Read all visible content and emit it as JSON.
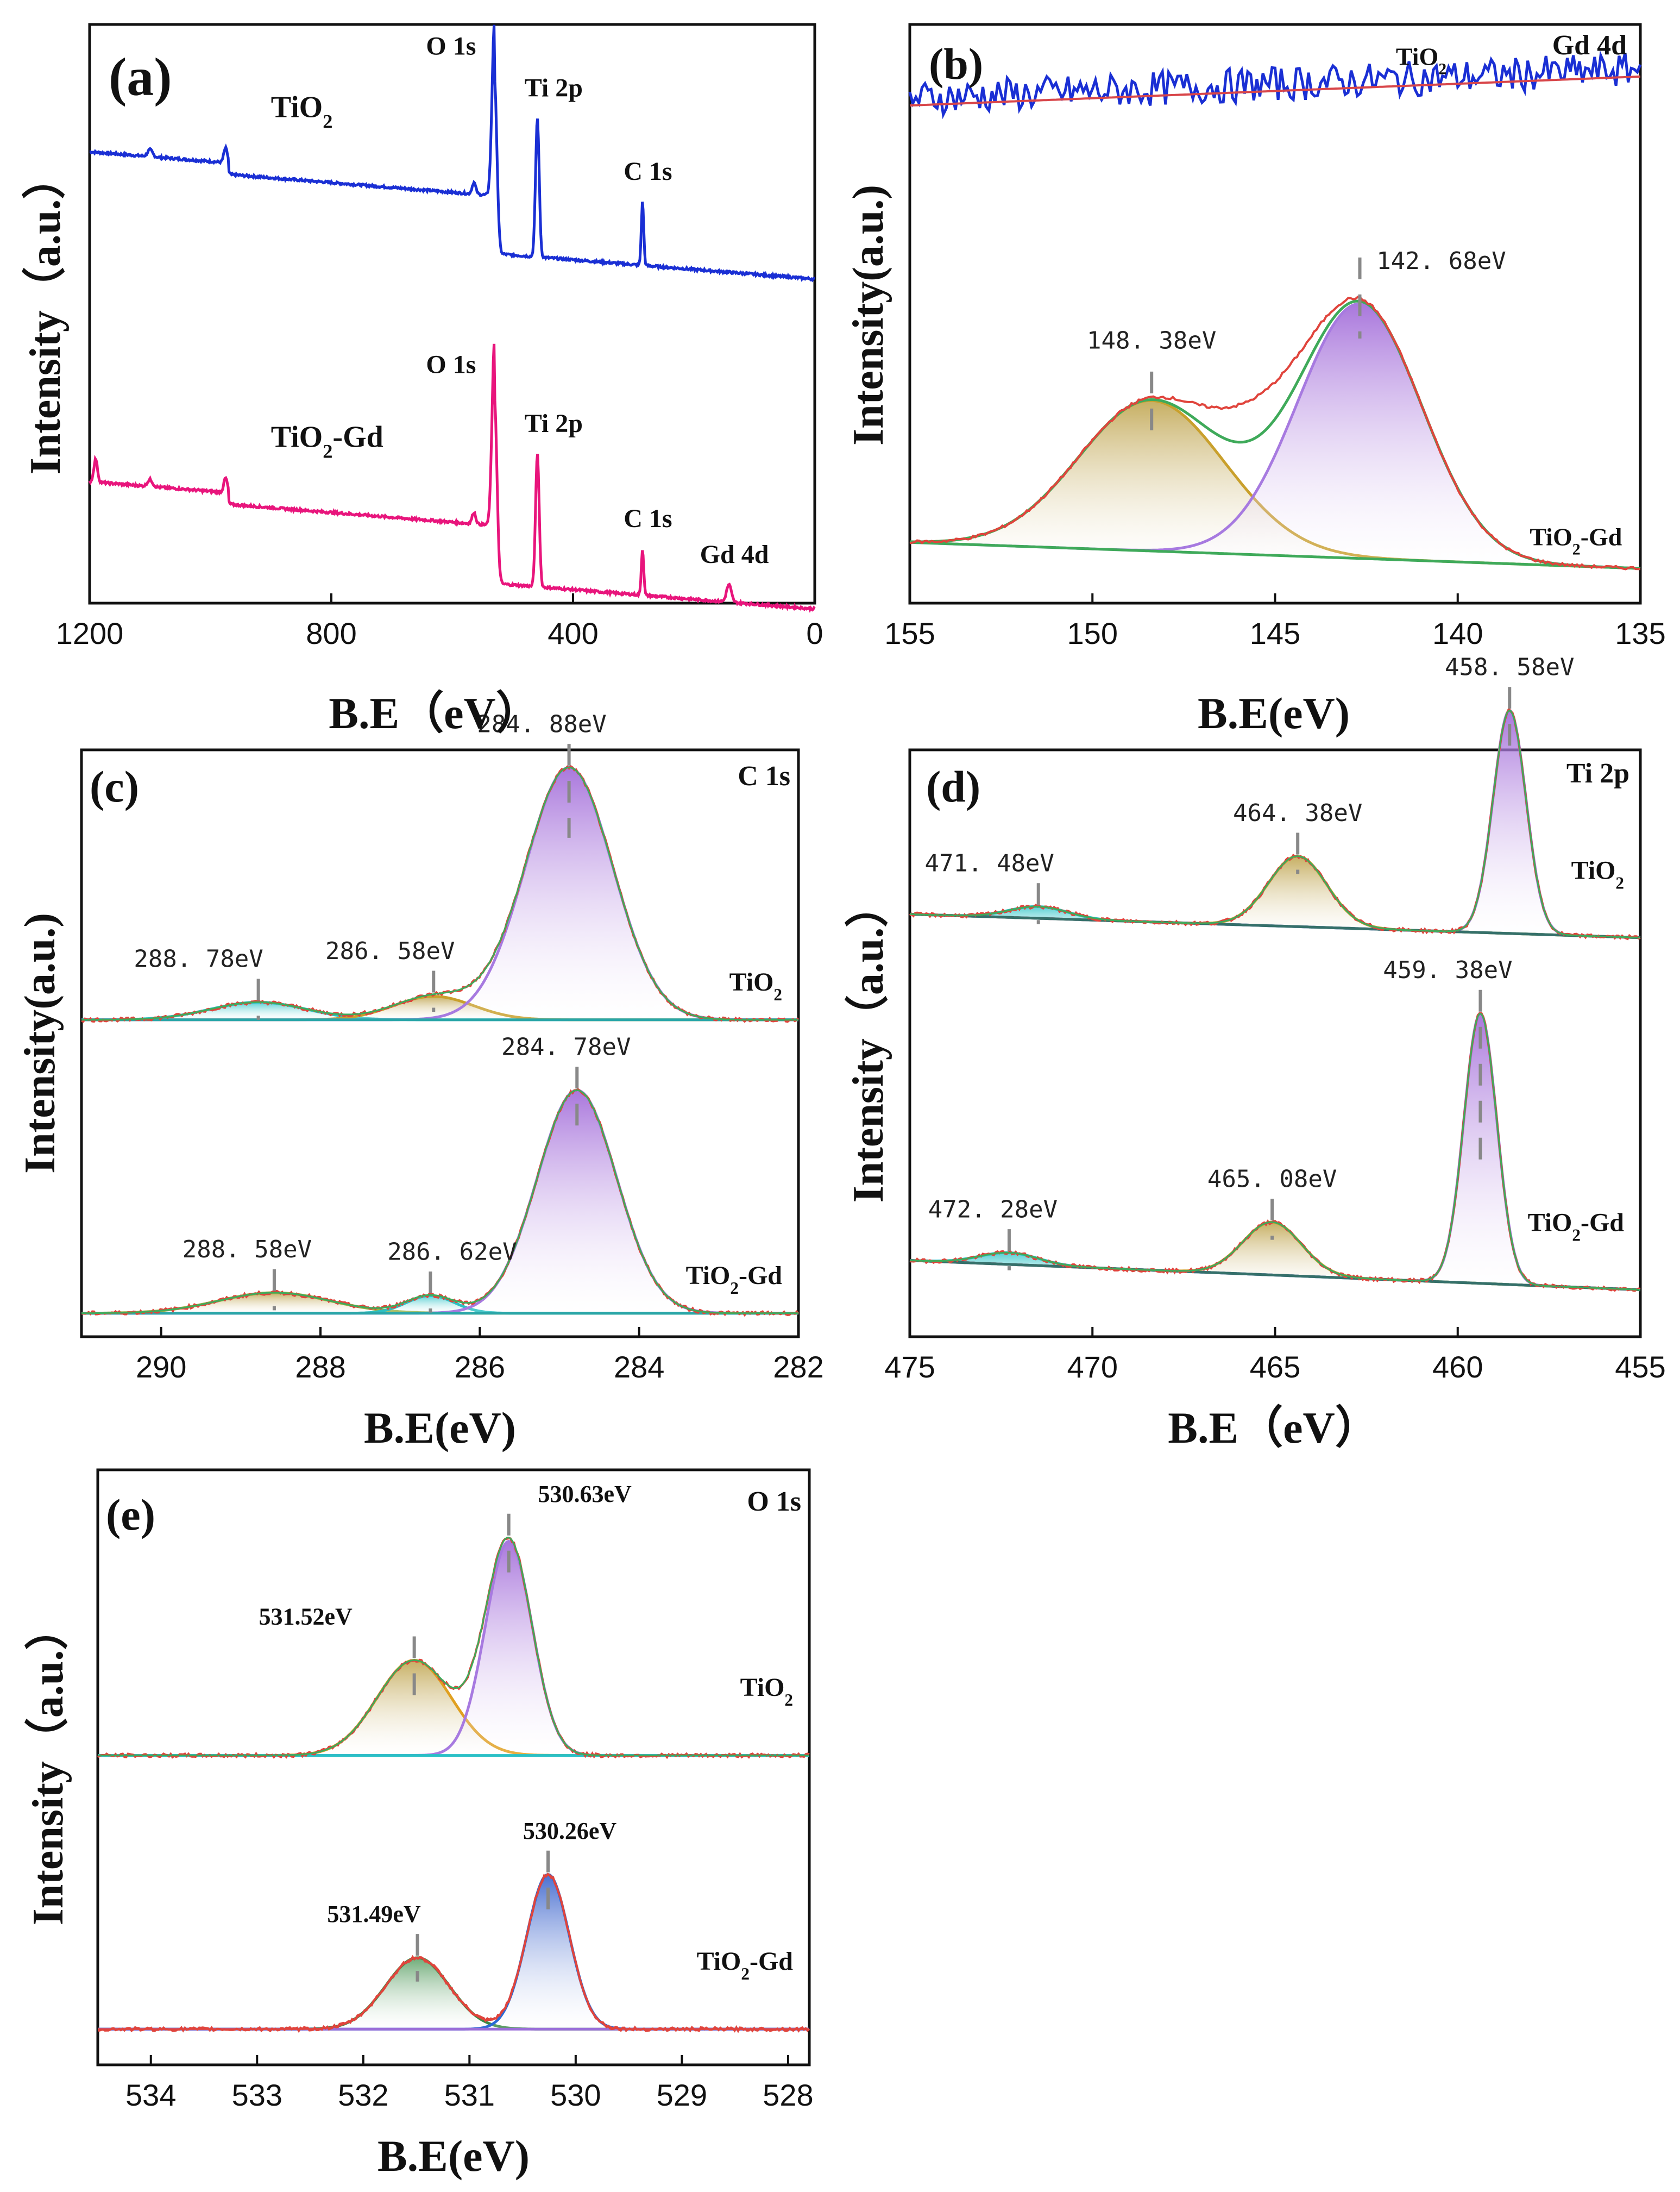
{
  "chart_data": [
    {
      "id": "a",
      "type": "line",
      "panel_label": "(a)",
      "xlabel": "B.E（eV）",
      "ylabel": "Intensity（a.u.）",
      "xlim": [
        1200,
        0
      ],
      "x_ticks": [
        "1200",
        "800",
        "400",
        "0"
      ],
      "x_tick_values": [
        1200,
        800,
        400,
        0
      ],
      "series": [
        {
          "name": "TiO2",
          "label_main": "TiO",
          "label_sub": "2",
          "label_tail": "",
          "color": "#1a2fd4",
          "offset": 0.66,
          "peaks": [
            {
              "x": 530,
              "h": 0.3,
              "w": 4,
              "label": "O 1s"
            },
            {
              "x": 459,
              "h": 0.24,
              "w": 3,
              "label": "Ti 2p"
            },
            {
              "x": 285,
              "h": 0.11,
              "w": 2,
              "label": "C 1s"
            }
          ]
        },
        {
          "name": "TiO2-Gd",
          "label_main": "TiO",
          "label_sub": "2",
          "label_tail": "-Gd",
          "color": "#e8157c",
          "offset": 0.09,
          "peaks": [
            {
              "x": 530,
              "h": 0.32,
              "w": 4,
              "label": "O 1s"
            },
            {
              "x": 459,
              "h": 0.23,
              "w": 3,
              "label": "Ti 2p"
            },
            {
              "x": 285,
              "h": 0.08,
              "w": 2,
              "label": "C 1s"
            },
            {
              "x": 142,
              "h": 0.03,
              "w": 4,
              "label": "Gd 4d"
            }
          ]
        }
      ]
    },
    {
      "id": "b",
      "type": "line",
      "panel_label": "(b)",
      "element_label": "Gd 4d",
      "xlabel": "B.E(eV)",
      "ylabel": "Intensity(a.u.)",
      "xlim": [
        155,
        135
      ],
      "x_ticks": [
        "155",
        "150",
        "145",
        "140",
        "135"
      ],
      "x_tick_values": [
        155,
        150,
        145,
        140,
        135
      ],
      "sample_labels": [
        {
          "main": "TiO",
          "sub": "2",
          "tail": ""
        },
        {
          "main": "TiO",
          "sub": "2",
          "tail": "-Gd"
        }
      ],
      "peaks": [
        {
          "x": 148.38,
          "label": "148. 38eV"
        },
        {
          "x": 142.68,
          "label": "142. 68eV"
        }
      ]
    },
    {
      "id": "c",
      "type": "line",
      "panel_label": "(c)",
      "element_label": "C 1s",
      "xlabel": "B.E(eV)",
      "ylabel": "Intensity(a.u.)",
      "xlim": [
        291,
        282
      ],
      "x_ticks": [
        "290",
        "288",
        "286",
        "284",
        "282"
      ],
      "x_tick_values": [
        290,
        288,
        286,
        284,
        282
      ],
      "series": [
        {
          "name": "TiO2",
          "label_main": "TiO",
          "label_sub": "2",
          "label_tail": "",
          "peaks": [
            {
              "x": 288.78,
              "label": "288. 78eV"
            },
            {
              "x": 286.58,
              "label": "286. 58eV"
            },
            {
              "x": 284.88,
              "label": "284. 88eV"
            }
          ]
        },
        {
          "name": "TiO2-Gd",
          "label_main": "TiO",
          "label_sub": "2",
          "label_tail": "-Gd",
          "peaks": [
            {
              "x": 288.58,
              "label": "288. 58eV"
            },
            {
              "x": 286.62,
              "label": "286. 62eV"
            },
            {
              "x": 284.78,
              "label": "284. 78eV"
            }
          ]
        }
      ]
    },
    {
      "id": "d",
      "type": "line",
      "panel_label": "(d)",
      "element_label": "Ti 2p",
      "xlabel": "B.E（eV）",
      "ylabel": "Intensity（a.u.）",
      "xlim": [
        475,
        455
      ],
      "x_ticks": [
        "475",
        "470",
        "465",
        "460",
        "455"
      ],
      "x_tick_values": [
        475,
        470,
        465,
        460,
        455
      ],
      "series": [
        {
          "name": "TiO2",
          "label_main": "TiO",
          "label_sub": "2",
          "label_tail": "",
          "peaks": [
            {
              "x": 471.48,
              "label": "471. 48eV"
            },
            {
              "x": 464.38,
              "label": "464. 38eV"
            },
            {
              "x": 458.58,
              "label": "458. 58eV"
            }
          ]
        },
        {
          "name": "TiO2-Gd",
          "label_main": "TiO",
          "label_sub": "2",
          "label_tail": "-Gd",
          "peaks": [
            {
              "x": 472.28,
              "label": "472. 28eV"
            },
            {
              "x": 465.08,
              "label": "465. 08eV"
            },
            {
              "x": 459.38,
              "label": "459. 38eV"
            }
          ]
        }
      ]
    },
    {
      "id": "e",
      "type": "line",
      "panel_label": "(e)",
      "element_label": "O 1s",
      "xlabel": "B.E(eV)",
      "ylabel": "Intensity（a.u.）",
      "xlim": [
        534.5,
        527.8
      ],
      "x_ticks": [
        "534",
        "533",
        "532",
        "531",
        "530",
        "529",
        "528"
      ],
      "x_tick_values": [
        534,
        533,
        532,
        531,
        530,
        529,
        528
      ],
      "series": [
        {
          "name": "TiO2",
          "label_main": "TiO",
          "label_sub": "2",
          "label_tail": "",
          "peaks": [
            {
              "x": 531.52,
              "label": "531.52eV"
            },
            {
              "x": 530.63,
              "label": "530.63eV"
            }
          ]
        },
        {
          "name": "TiO2-Gd",
          "label_main": "TiO",
          "label_sub": "2",
          "label_tail": "-Gd",
          "peaks": [
            {
              "x": 531.49,
              "label": "531.49eV"
            },
            {
              "x": 530.26,
              "label": "530.26eV"
            }
          ]
        }
      ]
    }
  ]
}
